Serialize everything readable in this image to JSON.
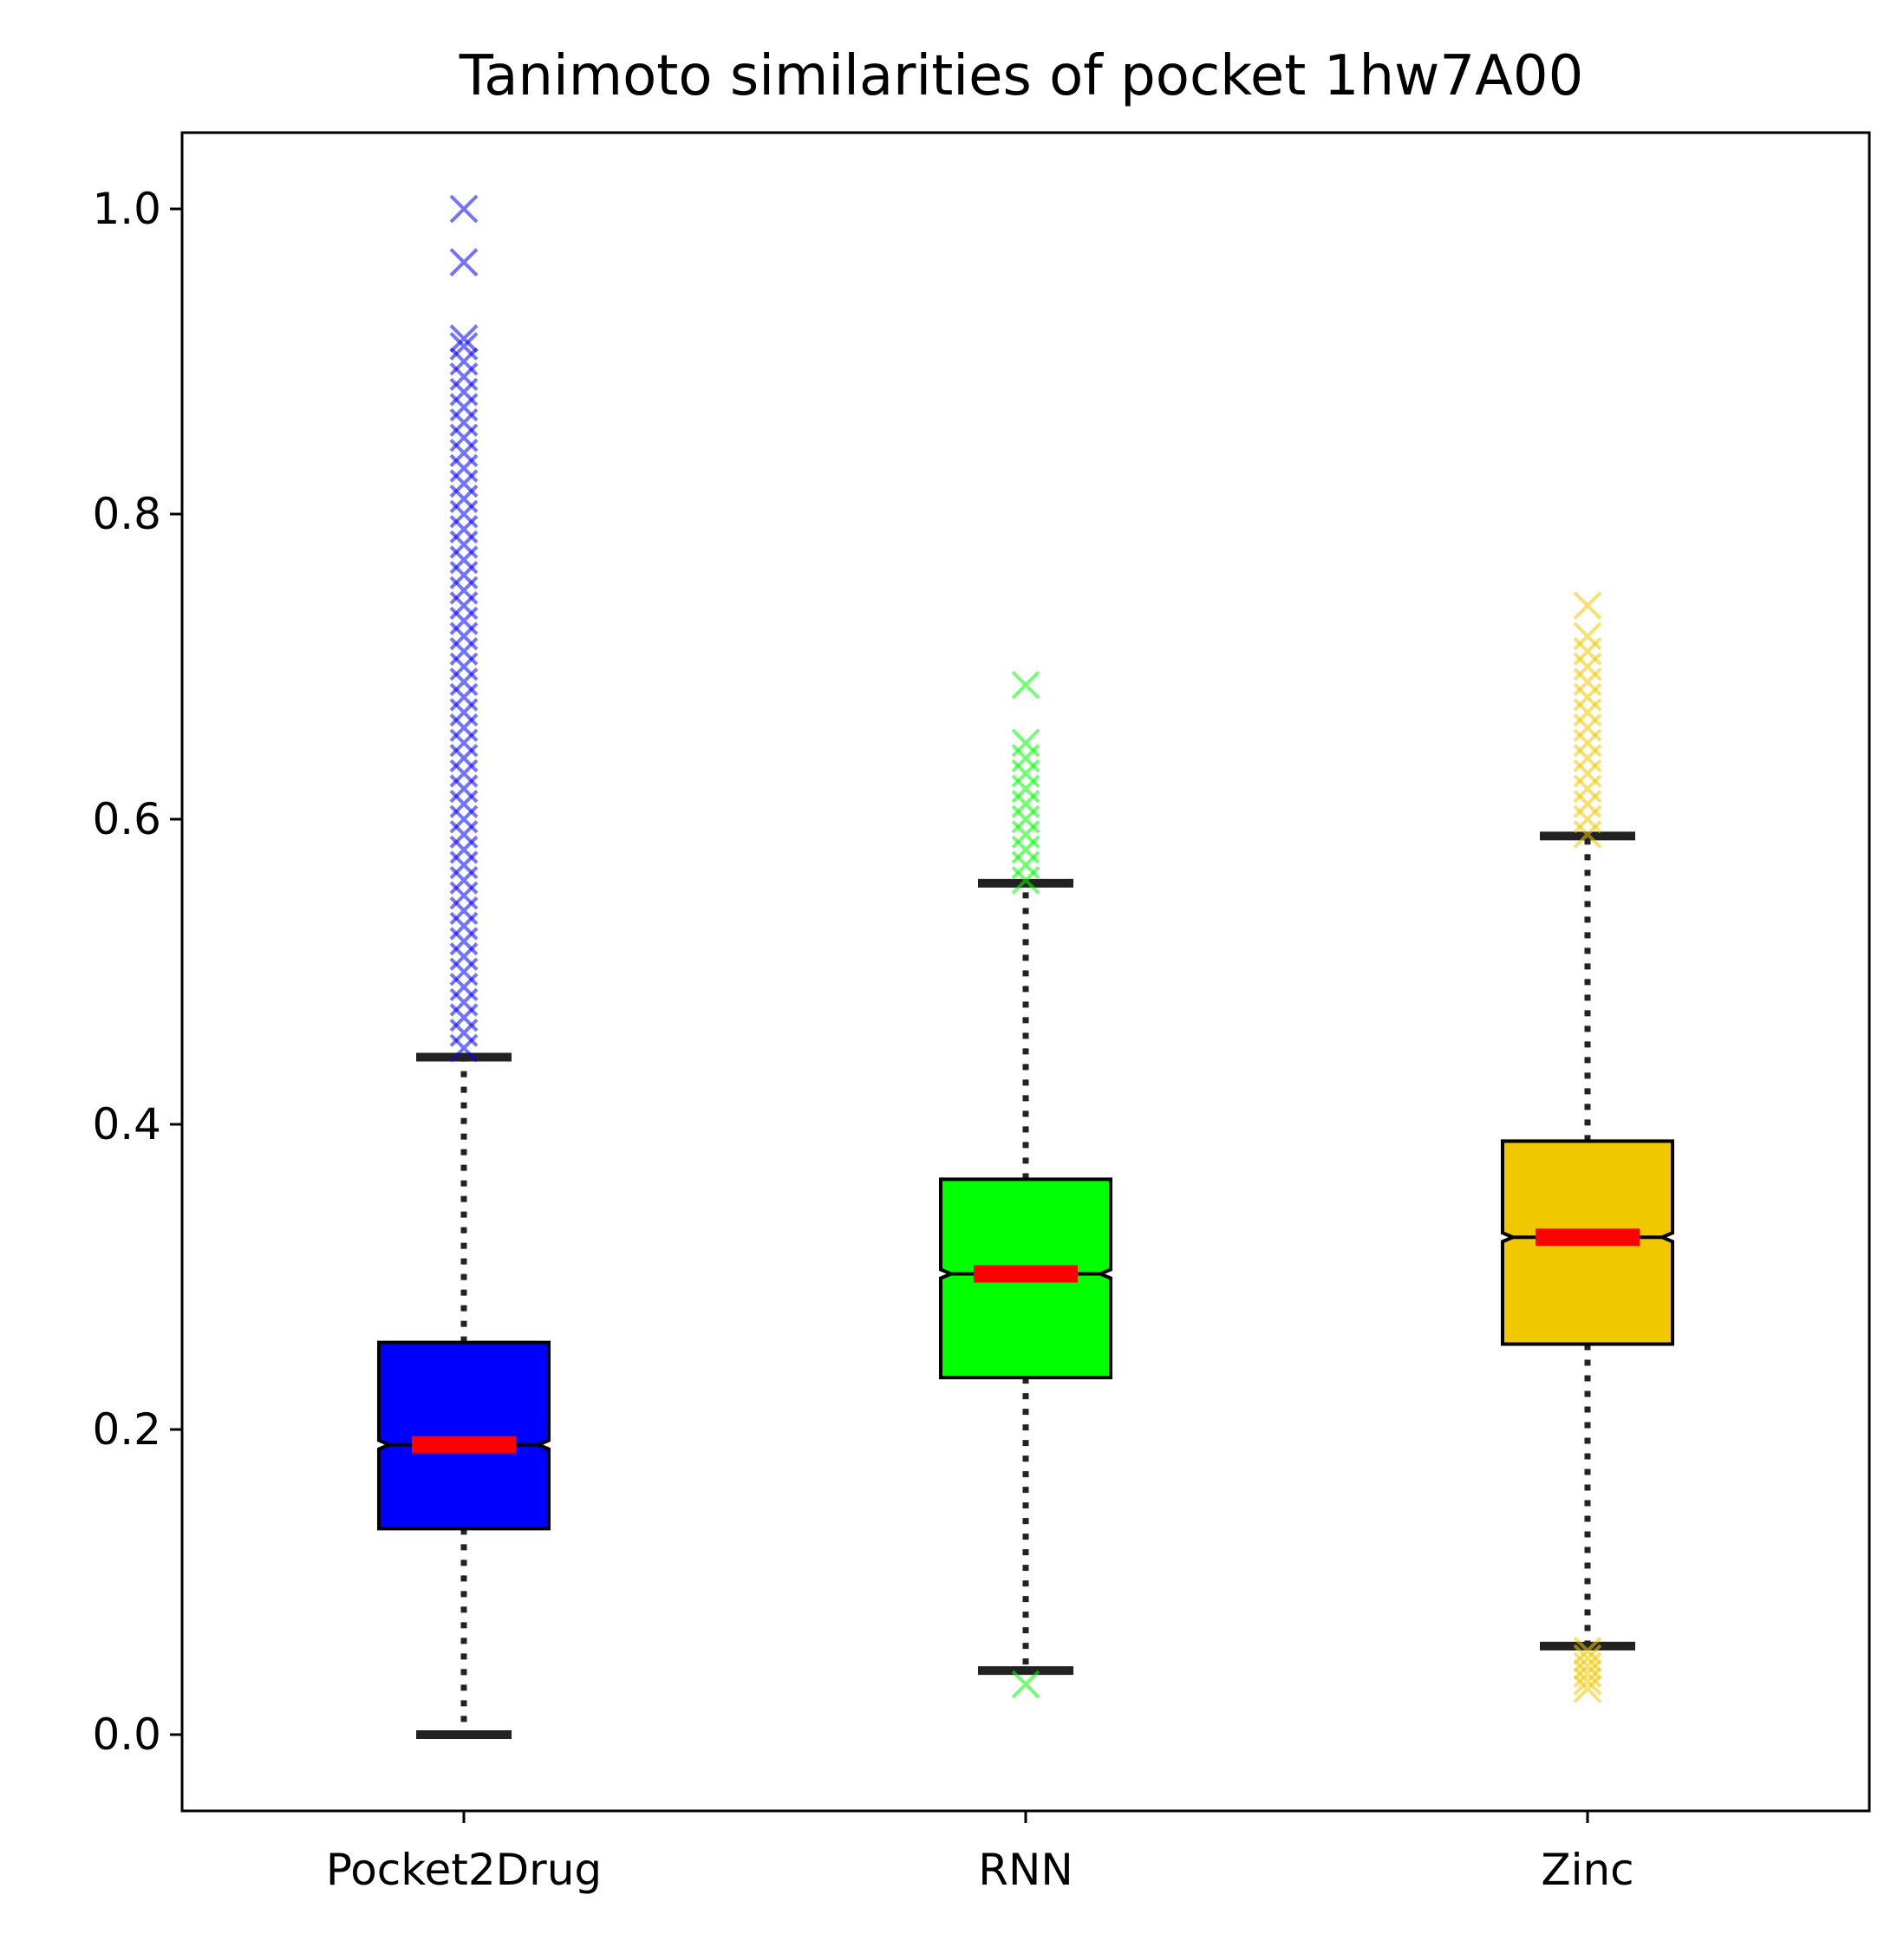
{
  "chart_data": {
    "type": "box",
    "title": "Tanimoto similarities of pocket 1hw7A00",
    "xlabel": "",
    "ylabel": "",
    "ylim": [
      -0.05,
      1.05
    ],
    "yticks": [
      0.0,
      0.2,
      0.4,
      0.6,
      0.8,
      1.0
    ],
    "ytick_labels": [
      "0.0",
      "0.2",
      "0.4",
      "0.6",
      "0.8",
      "1.0"
    ],
    "categories": [
      "Pocket2Drug",
      "RNN",
      "Zinc"
    ],
    "grid": false,
    "notched": true,
    "median_color": "#ff0000",
    "whisker_style": "dotted",
    "series": [
      {
        "color": "#0000ff",
        "whisker_low": 0.0,
        "q1": 0.135,
        "median": 0.19,
        "q3": 0.257,
        "whisker_high": 0.444,
        "outliers": [
          1.0,
          0.965,
          0.915,
          0.91,
          0.9,
          0.89,
          0.88,
          0.87,
          0.86,
          0.85,
          0.84,
          0.83,
          0.82,
          0.81,
          0.8,
          0.79,
          0.78,
          0.77,
          0.76,
          0.75,
          0.74,
          0.73,
          0.72,
          0.71,
          0.7,
          0.69,
          0.68,
          0.67,
          0.66,
          0.65,
          0.64,
          0.63,
          0.62,
          0.61,
          0.6,
          0.59,
          0.58,
          0.57,
          0.56,
          0.55,
          0.54,
          0.53,
          0.52,
          0.51,
          0.5,
          0.49,
          0.48,
          0.47,
          0.46,
          0.45
        ]
      },
      {
        "color": "#00ff00",
        "whisker_low": 0.042,
        "q1": 0.234,
        "median": 0.302,
        "q3": 0.364,
        "whisker_high": 0.558,
        "outliers": [
          0.688,
          0.65,
          0.64,
          0.63,
          0.62,
          0.61,
          0.6,
          0.59,
          0.58,
          0.57,
          0.56,
          0.033
        ]
      },
      {
        "color": "#f0c800",
        "whisker_low": 0.058,
        "q1": 0.256,
        "median": 0.326,
        "q3": 0.389,
        "whisker_high": 0.589,
        "outliers": [
          0.74,
          0.72,
          0.71,
          0.7,
          0.69,
          0.68,
          0.67,
          0.66,
          0.65,
          0.64,
          0.63,
          0.62,
          0.61,
          0.6,
          0.59,
          0.055,
          0.05,
          0.045,
          0.04,
          0.035,
          0.03
        ]
      }
    ]
  }
}
